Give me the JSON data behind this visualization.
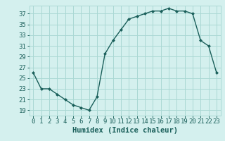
{
  "x": [
    0,
    1,
    2,
    3,
    4,
    5,
    6,
    7,
    8,
    9,
    10,
    11,
    12,
    13,
    14,
    15,
    16,
    17,
    18,
    19,
    20,
    21,
    22,
    23
  ],
  "y": [
    26,
    23,
    23,
    22,
    21,
    20,
    19.5,
    19,
    21.5,
    29.5,
    32,
    34,
    36,
    36.5,
    37,
    37.5,
    37.5,
    38,
    37.5,
    37.5,
    37,
    32,
    31,
    26
  ],
  "line_color": "#1a5f5a",
  "marker_color": "#1a5f5a",
  "bg_color": "#d4f0ee",
  "grid_color": "#aad8d4",
  "xlabel": "Humidex (Indice chaleur)",
  "yticks": [
    19,
    21,
    23,
    25,
    27,
    29,
    31,
    33,
    35,
    37
  ],
  "ylim": [
    18.0,
    38.5
  ],
  "xlim": [
    -0.5,
    23.5
  ],
  "xlabel_color": "#1a5f5a",
  "tick_color": "#1a5f5a",
  "font_size_axis": 6.5,
  "font_size_xlabel": 7.5
}
